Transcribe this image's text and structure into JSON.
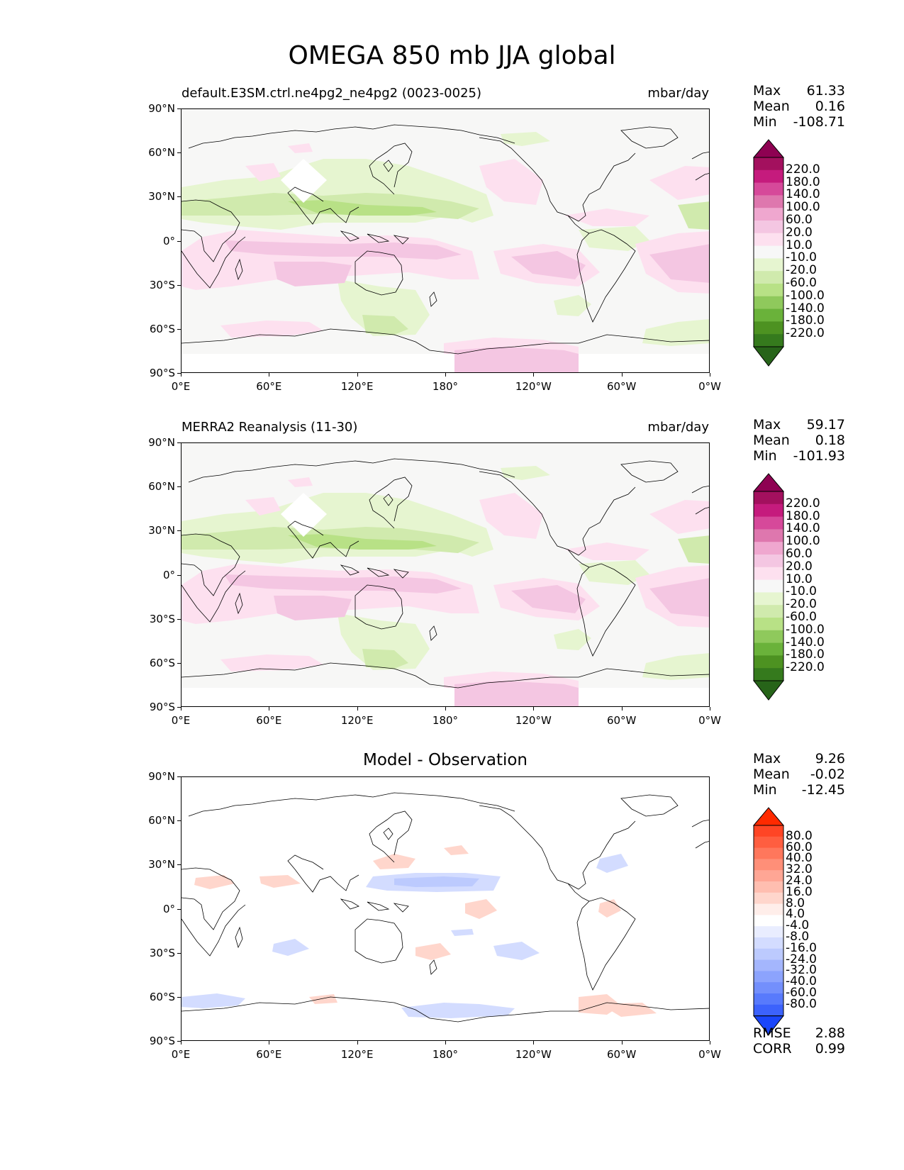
{
  "title": "OMEGA 850 mb JJA global",
  "lat_ticks": [
    "90°N",
    "60°N",
    "30°N",
    "0°",
    "30°S",
    "60°S",
    "90°S"
  ],
  "lon_ticks": [
    "0°E",
    "60°E",
    "120°E",
    "180°",
    "120°W",
    "60°W",
    "0°W"
  ],
  "panels": [
    {
      "title_left": "default.E3SM.ctrl.ne4pg2_ne4pg2 (0023-0025)",
      "title_right": "mbar/day",
      "title_center": "",
      "stats": [
        {
          "label": "Max",
          "value": "61.33"
        },
        {
          "label": "Mean",
          "value": "0.16"
        },
        {
          "label": "Min",
          "value": "-108.71"
        }
      ]
    },
    {
      "title_left": "MERRA2 Reanalysis (11-30)",
      "title_right": "mbar/day",
      "title_center": "",
      "stats": [
        {
          "label": "Max",
          "value": "59.17"
        },
        {
          "label": "Mean",
          "value": "0.18"
        },
        {
          "label": "Min",
          "value": "-101.93"
        }
      ]
    },
    {
      "title_left": "",
      "title_right": "",
      "title_center": "Model - Observation",
      "stats": [
        {
          "label": "Max",
          "value": "9.26"
        },
        {
          "label": "Mean",
          "value": "-0.02"
        },
        {
          "label": "Min",
          "value": "-12.45"
        }
      ],
      "metrics": [
        {
          "label": "RMSE",
          "value": "2.88"
        },
        {
          "label": "CORR",
          "value": "0.99"
        }
      ]
    }
  ],
  "colorbar_main": {
    "levels": [
      "220.0",
      "180.0",
      "140.0",
      "100.0",
      "60.0",
      "20.0",
      "10.0",
      "-10.0",
      "-20.0",
      "-60.0",
      "-100.0",
      "-140.0",
      "-180.0",
      "-220.0"
    ],
    "colors": [
      "#8e0152",
      "#a3105e",
      "#c51b7d",
      "#d6499a",
      "#de77ae",
      "#efa7cf",
      "#f4c6e2",
      "#fde0ef",
      "#f7f7f7",
      "#e6f5d0",
      "#d0eaad",
      "#b8e186",
      "#8fc95c",
      "#6ab23a",
      "#4d9221",
      "#357a1d",
      "#276419"
    ]
  },
  "colorbar_diff": {
    "levels": [
      "80.0",
      "60.0",
      "40.0",
      "32.0",
      "24.0",
      "16.0",
      "8.0",
      "4.0",
      "-4.0",
      "-8.0",
      "-16.0",
      "-24.0",
      "-32.0",
      "-40.0",
      "-60.0",
      "-80.0"
    ],
    "colors": [
      "#ff2a00",
      "#ff4525",
      "#ff5e40",
      "#ff775c",
      "#ff8f78",
      "#ffa695",
      "#ffbeb0",
      "#ffd6cc",
      "#ffeeea",
      "#ffffff",
      "#e9edff",
      "#d3dcff",
      "#bccafe",
      "#a4b6fd",
      "#8ca3fd",
      "#738ffc",
      "#587afc",
      "#3c62fc",
      "#1a46fb"
    ]
  },
  "map_colors": {
    "green_light": "#e6f5d0",
    "green_mid": "#d0eaad",
    "green_dark": "#b8e186",
    "pink_light": "#fde0ef",
    "pink_mid": "#f4c6e2",
    "diff_red": "#ffd6cc",
    "diff_blue": "#d3dcff",
    "diff_blue_dark": "#bccafe"
  }
}
